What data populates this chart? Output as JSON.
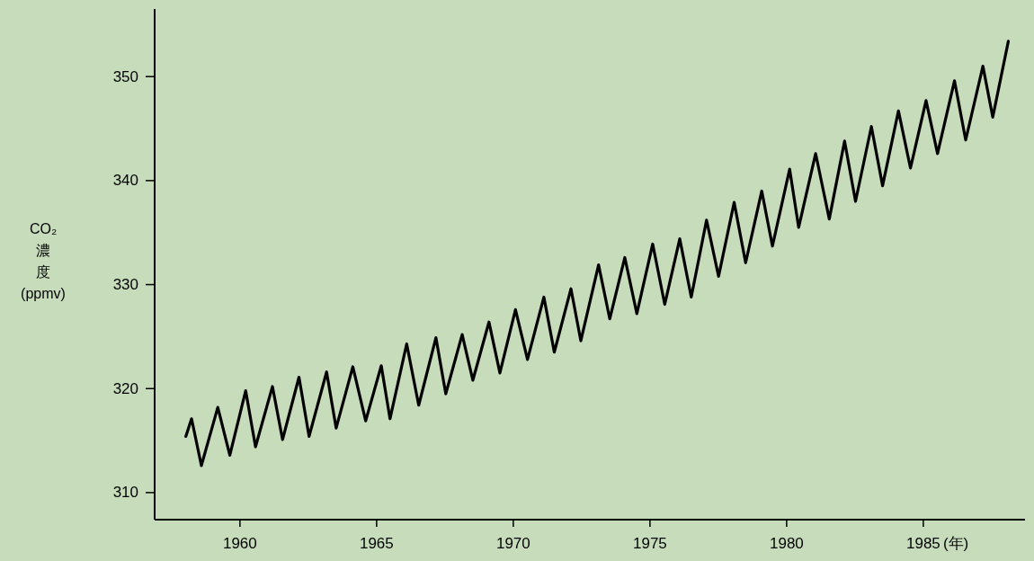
{
  "chart_data": {
    "type": "line",
    "xlabel": "(年)",
    "ylabel": "CO₂濃度(ppmv)",
    "x": [
      1958.02,
      1958.23,
      1958.59,
      1959.19,
      1959.63,
      1960.21,
      1960.57,
      1961.19,
      1961.56,
      1962.16,
      1962.53,
      1963.17,
      1963.52,
      1964.13,
      1964.6,
      1965.17,
      1965.49,
      1966.1,
      1966.54,
      1967.17,
      1967.53,
      1968.13,
      1968.52,
      1969.11,
      1969.51,
      1970.08,
      1970.52,
      1971.12,
      1971.5,
      1972.11,
      1972.47,
      1973.12,
      1973.53,
      1974.08,
      1974.52,
      1975.1,
      1975.54,
      1976.09,
      1976.51,
      1977.07,
      1977.51,
      1978.08,
      1978.5,
      1979.09,
      1979.48,
      1980.11,
      1980.44,
      1981.06,
      1981.56,
      1982.12,
      1982.52,
      1983.1,
      1983.51,
      1984.09,
      1984.53,
      1985.1,
      1985.52,
      1986.14,
      1986.55,
      1987.18,
      1987.54,
      1988.11
    ],
    "series": [
      {
        "color": "#000000",
        "values": [
          315.4,
          317.1,
          312.6,
          318.2,
          313.6,
          319.8,
          314.4,
          320.2,
          315.1,
          321.1,
          315.4,
          321.6,
          316.2,
          322.1,
          316.9,
          322.2,
          317.1,
          324.3,
          318.4,
          324.9,
          319.5,
          325.2,
          320.8,
          326.4,
          321.5,
          327.6,
          322.8,
          328.8,
          323.5,
          329.6,
          324.6,
          331.9,
          326.7,
          332.6,
          327.2,
          333.9,
          328.1,
          334.4,
          328.8,
          336.2,
          330.8,
          337.9,
          332.1,
          339.0,
          333.7,
          341.1,
          335.5,
          342.6,
          336.3,
          343.8,
          338.0,
          345.2,
          339.5,
          346.7,
          341.2,
          347.7,
          342.6,
          349.6,
          343.9,
          351.0,
          346.1,
          353.4
        ]
      }
    ],
    "xlim": [
      1956.88,
      1988.72
    ],
    "ylim": [
      307.4,
      356.5
    ],
    "xticks": [
      1960,
      1965,
      1970,
      1975,
      1980,
      1985
    ],
    "yticks": [
      310,
      320,
      330,
      340,
      350
    ]
  }
}
